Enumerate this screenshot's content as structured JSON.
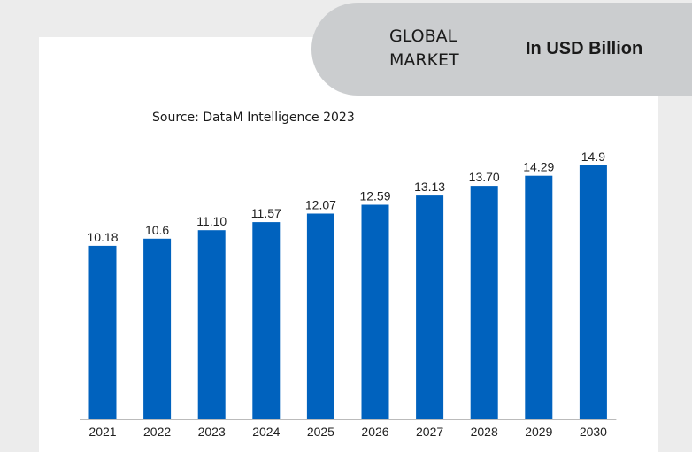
{
  "header": {
    "title": "GLOBAL MARKET",
    "unit": "In USD Billion"
  },
  "source": "Source: DataM Intelligence 2023",
  "colors": {
    "bar": "#0062be",
    "header_bg": "#cbcdcf",
    "page_bg": "#ececec"
  },
  "chart_data": {
    "type": "bar",
    "title": "",
    "xlabel": "",
    "ylabel": "",
    "categories": [
      "2021",
      "2022",
      "2023",
      "2024",
      "2025",
      "2026",
      "2027",
      "2028",
      "2029",
      "2030"
    ],
    "values": [
      10.18,
      10.6,
      11.1,
      11.57,
      12.07,
      12.59,
      13.13,
      13.7,
      14.29,
      14.9
    ],
    "labels": [
      "10.18",
      "10.6",
      "11.10",
      "11.57",
      "12.07",
      "12.59",
      "13.13",
      "13.70",
      "14.29",
      "14.9"
    ],
    "ylim": [
      0,
      14.9
    ],
    "grid": false,
    "legend": "none"
  }
}
